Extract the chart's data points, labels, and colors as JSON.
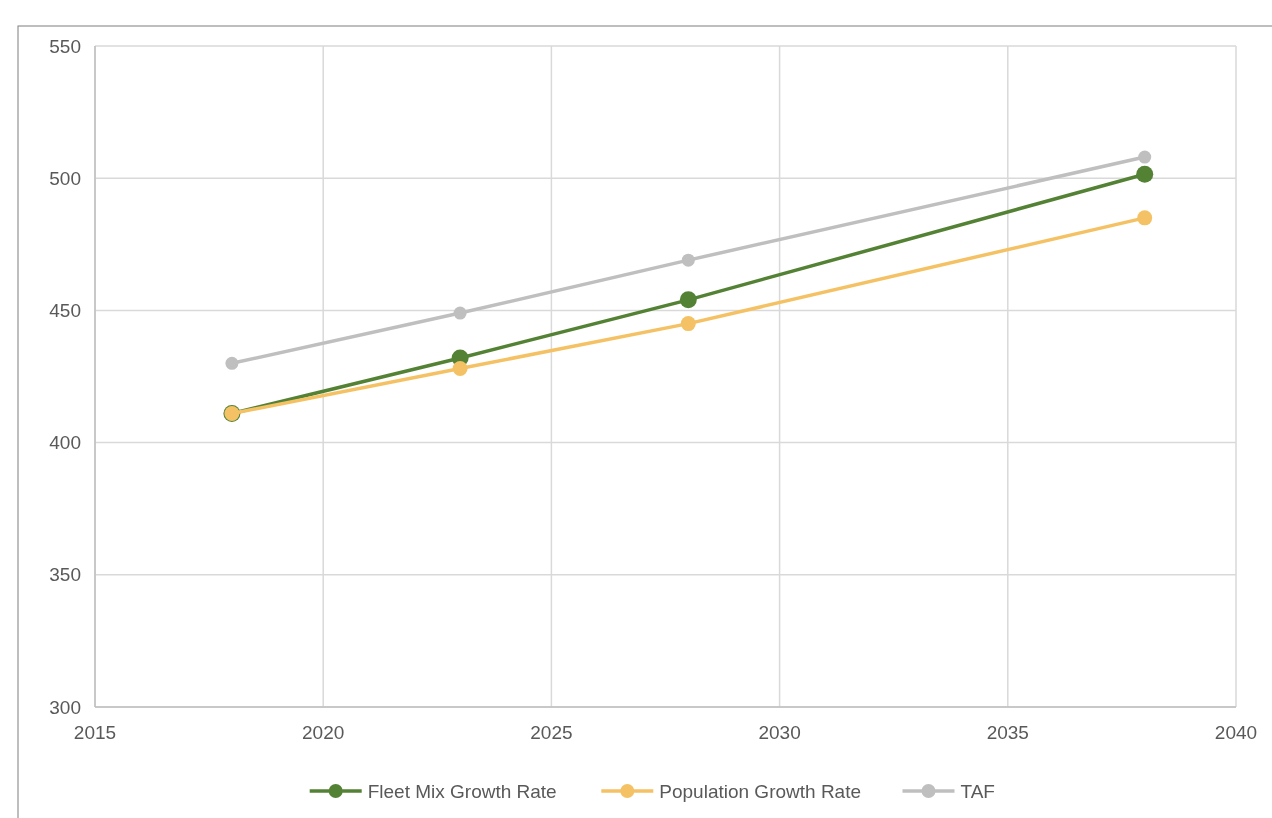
{
  "chart_data": {
    "type": "line",
    "x": [
      2018,
      2023,
      2028,
      2038
    ],
    "series": [
      {
        "name": "Fleet Mix Growth Rate",
        "color": "#548235",
        "values": [
          411,
          432,
          454,
          501.5
        ]
      },
      {
        "name": "Population Growth Rate",
        "color": "#f4c264",
        "values": [
          411,
          428,
          445,
          485
        ]
      },
      {
        "name": "TAF",
        "color": "#bfbfbf",
        "values": [
          430,
          449,
          469,
          508
        ]
      }
    ],
    "xlim": [
      2015,
      2040
    ],
    "xticks": [
      2015,
      2020,
      2025,
      2030,
      2035,
      2040
    ],
    "ylim": [
      300,
      550
    ],
    "yticks": [
      300,
      350,
      400,
      450,
      500,
      550
    ],
    "grid": true,
    "legend": "bottom",
    "marker": "circle",
    "line_style": "solid"
  }
}
